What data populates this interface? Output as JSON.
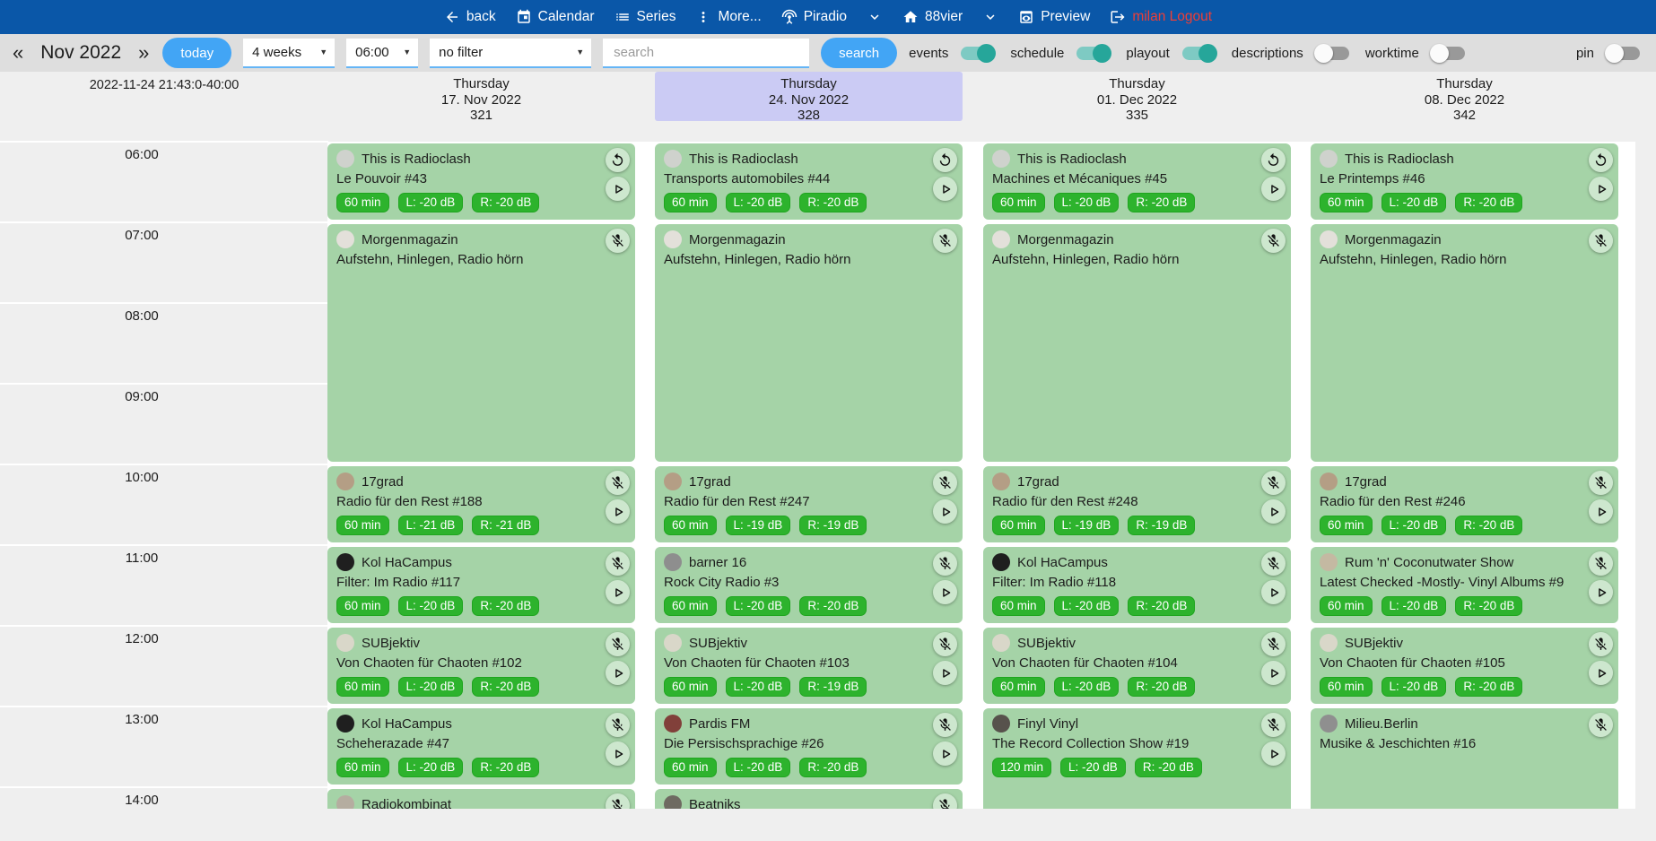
{
  "navbar": {
    "items": [
      {
        "name": "back",
        "label": "back",
        "icon": "arrow-back"
      },
      {
        "name": "calendar",
        "label": "Calendar",
        "icon": "calendar"
      },
      {
        "name": "series",
        "label": "Series",
        "icon": "list"
      },
      {
        "name": "more",
        "label": "More...",
        "icon": "more-vert"
      },
      {
        "name": "piradio",
        "label": "Piradio",
        "icon": "antenna"
      },
      {
        "name": "piradio-caret",
        "label": "",
        "icon": "chevron-down"
      },
      {
        "name": "88vier",
        "label": "88vier",
        "icon": "home"
      },
      {
        "name": "station-caret",
        "label": "",
        "icon": "chevron-down"
      },
      {
        "name": "preview",
        "label": "Preview",
        "icon": "preview"
      },
      {
        "name": "logout",
        "label": "milan Logout",
        "icon": "logout",
        "color": "#ef3e36"
      }
    ]
  },
  "toolbar": {
    "prev": "«",
    "month": "Nov 2022",
    "next": "»",
    "today_label": "today",
    "range_value": "4 weeks",
    "start_value": "06:00",
    "filter_value": "no filter",
    "search_placeholder": "search",
    "search_label": "search",
    "toggles": [
      {
        "label": "events",
        "on": true
      },
      {
        "label": "schedule",
        "on": true
      },
      {
        "label": "playout",
        "on": true
      },
      {
        "label": "descriptions",
        "on": false
      },
      {
        "label": "worktime",
        "on": false
      }
    ],
    "pin": {
      "label": "pin",
      "on": false
    },
    "accent_blue": "#42a5f5",
    "toggle_on_color": "#26a69a"
  },
  "calendar": {
    "timestamp": "2022-11-24 21:43:0-40:00",
    "time_labels": [
      "06:00",
      "07:00",
      "08:00",
      "09:00",
      "10:00",
      "11:00",
      "12:00",
      "13:00",
      "14:00"
    ],
    "highlight_color": "#cbcbf4",
    "card_color": "#a5d3a7",
    "badge_color": "#2db32d",
    "columns": [
      {
        "weekday": "Thursday",
        "date": "17. Nov 2022",
        "week_number": "321",
        "highlighted": false,
        "events": [
          {
            "start": "06:00",
            "minutes": 60,
            "title": "This is Radioclash",
            "subtitle": "Le Pouvoir #43",
            "badges": [
              "60 min",
              "L: -20 dB",
              "R: -20 dB"
            ],
            "status_icon": "replay-icon",
            "play_button": true,
            "avatar_color": "#cfd2cd"
          },
          {
            "start": "07:00",
            "minutes": 180,
            "title": "Morgenmagazin",
            "subtitle": "Aufstehn, Hinlegen, Radio hörn",
            "badges": [],
            "status_icon": "mic-off-icon",
            "play_button": false,
            "avatar_color": "#e3e0da"
          },
          {
            "start": "10:00",
            "minutes": 60,
            "title": "17grad",
            "subtitle": "Radio für den Rest #188",
            "badges": [
              "60 min",
              "L: -21 dB",
              "R: -21 dB"
            ],
            "status_icon": "mic-off-icon",
            "play_button": true,
            "avatar_color": "#b49e85"
          },
          {
            "start": "11:00",
            "minutes": 60,
            "title": "Kol HaCampus",
            "subtitle": "Filter: Im Radio #117",
            "badges": [
              "60 min",
              "L: -20 dB",
              "R: -20 dB"
            ],
            "status_icon": "mic-off-icon",
            "play_button": true,
            "avatar_color": "#1f1f1f"
          },
          {
            "start": "12:00",
            "minutes": 60,
            "title": "SUBjektiv",
            "subtitle": "Von Chaoten für Chaoten #102",
            "badges": [
              "60 min",
              "L: -20 dB",
              "R: -20 dB"
            ],
            "status_icon": "mic-off-icon",
            "play_button": true,
            "avatar_color": "#d9d7c9"
          },
          {
            "start": "13:00",
            "minutes": 60,
            "title": "Kol HaCampus",
            "subtitle": "Scheherazade #47",
            "badges": [
              "60 min",
              "L: -20 dB",
              "R: -20 dB"
            ],
            "status_icon": "mic-off-icon",
            "play_button": true,
            "avatar_color": "#1f1f1f"
          },
          {
            "start": "14:00",
            "minutes": 60,
            "title": "Radiokombinat",
            "subtitle": "",
            "badges": [],
            "status_icon": "mic-off-icon",
            "play_button": false,
            "avatar_color": "#b5ada0"
          }
        ]
      },
      {
        "weekday": "Thursday",
        "date": "24. Nov 2022",
        "week_number": "328",
        "highlighted": true,
        "events": [
          {
            "start": "06:00",
            "minutes": 60,
            "title": "This is Radioclash",
            "subtitle": "Transports automobiles #44",
            "badges": [
              "60 min",
              "L: -20 dB",
              "R: -20 dB"
            ],
            "status_icon": "replay-icon",
            "play_button": true,
            "avatar_color": "#cfd2cd"
          },
          {
            "start": "07:00",
            "minutes": 180,
            "title": "Morgenmagazin",
            "subtitle": "Aufstehn, Hinlegen, Radio hörn",
            "badges": [],
            "status_icon": "mic-off-icon",
            "play_button": false,
            "avatar_color": "#e3e0da"
          },
          {
            "start": "10:00",
            "minutes": 60,
            "title": "17grad",
            "subtitle": "Radio für den Rest #247",
            "badges": [
              "60 min",
              "L: -19 dB",
              "R: -19 dB"
            ],
            "status_icon": "mic-off-icon",
            "play_button": true,
            "avatar_color": "#b49e85"
          },
          {
            "start": "11:00",
            "minutes": 60,
            "title": "barner 16",
            "subtitle": "Rock City Radio #3",
            "badges": [
              "60 min",
              "L: -20 dB",
              "R: -20 dB"
            ],
            "status_icon": "mic-off-icon",
            "play_button": true,
            "avatar_color": "#8e8e8e"
          },
          {
            "start": "12:00",
            "minutes": 60,
            "title": "SUBjektiv",
            "subtitle": "Von Chaoten für Chaoten #103",
            "badges": [
              "60 min",
              "L: -20 dB",
              "R: -19 dB"
            ],
            "status_icon": "mic-off-icon",
            "play_button": true,
            "avatar_color": "#d9d7c9"
          },
          {
            "start": "13:00",
            "minutes": 60,
            "title": "Pardis FM",
            "subtitle": "Die Persischsprachige #26",
            "badges": [
              "60 min",
              "L: -20 dB",
              "R: -20 dB"
            ],
            "status_icon": "mic-off-icon",
            "play_button": true,
            "avatar_color": "#81403a"
          },
          {
            "start": "14:00",
            "minutes": 60,
            "title": "Beatniks",
            "subtitle": "",
            "badges": [],
            "status_icon": "mic-off-icon",
            "play_button": false,
            "avatar_color": "#6e6a61"
          }
        ]
      },
      {
        "weekday": "Thursday",
        "date": "01. Dec 2022",
        "week_number": "335",
        "highlighted": false,
        "events": [
          {
            "start": "06:00",
            "minutes": 60,
            "title": "This is Radioclash",
            "subtitle": "Machines et Mécaniques #45",
            "badges": [
              "60 min",
              "L: -20 dB",
              "R: -20 dB"
            ],
            "status_icon": "replay-icon",
            "play_button": true,
            "avatar_color": "#cfd2cd"
          },
          {
            "start": "07:00",
            "minutes": 180,
            "title": "Morgenmagazin",
            "subtitle": "Aufstehn, Hinlegen, Radio hörn",
            "badges": [],
            "status_icon": "mic-off-icon",
            "play_button": false,
            "avatar_color": "#e3e0da"
          },
          {
            "start": "10:00",
            "minutes": 60,
            "title": "17grad",
            "subtitle": "Radio für den Rest #248",
            "badges": [
              "60 min",
              "L: -19 dB",
              "R: -19 dB"
            ],
            "status_icon": "mic-off-icon",
            "play_button": true,
            "avatar_color": "#b49e85"
          },
          {
            "start": "11:00",
            "minutes": 60,
            "title": "Kol HaCampus",
            "subtitle": "Filter: Im Radio #118",
            "badges": [
              "60 min",
              "L: -20 dB",
              "R: -20 dB"
            ],
            "status_icon": "mic-off-icon",
            "play_button": true,
            "avatar_color": "#1f1f1f"
          },
          {
            "start": "12:00",
            "minutes": 60,
            "title": "SUBjektiv",
            "subtitle": "Von Chaoten für Chaoten #104",
            "badges": [
              "60 min",
              "L: -20 dB",
              "R: -20 dB"
            ],
            "status_icon": "mic-off-icon",
            "play_button": true,
            "avatar_color": "#d9d7c9"
          },
          {
            "start": "13:00",
            "minutes": 120,
            "title": "Finyl Vinyl",
            "subtitle": "The Record Collection Show #19",
            "badges": [
              "120 min",
              "L: -20 dB",
              "R: -20 dB"
            ],
            "status_icon": "mic-off-icon",
            "play_button": true,
            "avatar_color": "#57524c"
          }
        ]
      },
      {
        "weekday": "Thursday",
        "date": "08. Dec 2022",
        "week_number": "342",
        "highlighted": false,
        "events": [
          {
            "start": "06:00",
            "minutes": 60,
            "title": "This is Radioclash",
            "subtitle": "Le Printemps #46",
            "badges": [
              "60 min",
              "L: -20 dB",
              "R: -20 dB"
            ],
            "status_icon": "replay-icon",
            "play_button": true,
            "avatar_color": "#cfd2cd"
          },
          {
            "start": "07:00",
            "minutes": 180,
            "title": "Morgenmagazin",
            "subtitle": "Aufstehn, Hinlegen, Radio hörn",
            "badges": [],
            "status_icon": "mic-off-icon",
            "play_button": false,
            "avatar_color": "#e3e0da"
          },
          {
            "start": "10:00",
            "minutes": 60,
            "title": "17grad",
            "subtitle": "Radio für den Rest #246",
            "badges": [
              "60 min",
              "L: -20 dB",
              "R: -20 dB"
            ],
            "status_icon": "mic-off-icon",
            "play_button": true,
            "avatar_color": "#b49e85"
          },
          {
            "start": "11:00",
            "minutes": 60,
            "title": "Rum 'n' Coconutwater Show",
            "subtitle": "Latest Checked -Mostly- Vinyl Albums #9",
            "badges": [
              "60 min",
              "L: -20 dB",
              "R: -20 dB"
            ],
            "status_icon": "mic-off-icon",
            "play_button": true,
            "avatar_color": "#c4b9a2"
          },
          {
            "start": "12:00",
            "minutes": 60,
            "title": "SUBjektiv",
            "subtitle": "Von Chaoten für Chaoten #105",
            "badges": [
              "60 min",
              "L: -20 dB",
              "R: -20 dB"
            ],
            "status_icon": "mic-off-icon",
            "play_button": true,
            "avatar_color": "#d9d7c9"
          },
          {
            "start": "13:00",
            "minutes": 120,
            "title": "Milieu.Berlin",
            "subtitle": "Musike & Jeschichten #16",
            "badges": [],
            "status_icon": "mic-off-icon",
            "play_button": false,
            "avatar_color": "#8f8f8f"
          }
        ]
      }
    ]
  }
}
